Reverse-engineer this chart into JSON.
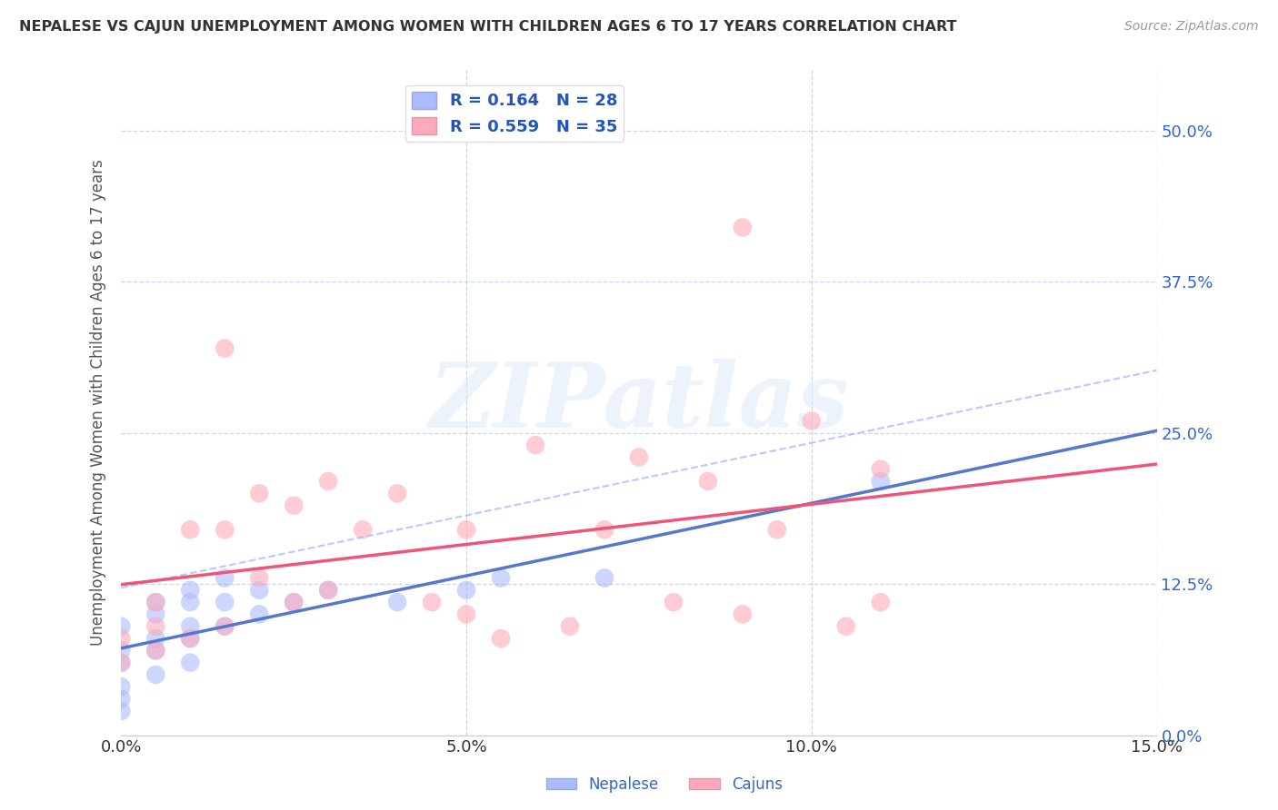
{
  "title": "NEPALESE VS CAJUN UNEMPLOYMENT AMONG WOMEN WITH CHILDREN AGES 6 TO 17 YEARS CORRELATION CHART",
  "source": "Source: ZipAtlas.com",
  "ylabel": "Unemployment Among Women with Children Ages 6 to 17 years",
  "xlim": [
    0.0,
    0.15
  ],
  "ylim": [
    0.0,
    0.55
  ],
  "x_ticks": [
    0.0,
    0.05,
    0.1,
    0.15
  ],
  "x_tick_labels": [
    "0.0%",
    "5.0%",
    "10.0%",
    "15.0%"
  ],
  "y_ticks": [
    0.0,
    0.125,
    0.25,
    0.375,
    0.5
  ],
  "y_tick_labels": [
    "0.0%",
    "12.5%",
    "25.0%",
    "37.5%",
    "50.0%"
  ],
  "nepalese_R": 0.164,
  "nepalese_N": 28,
  "cajun_R": 0.559,
  "cajun_N": 35,
  "nepalese_color": "#aabbff",
  "cajun_color": "#ffaabb",
  "nepalese_line_color": "#5577cc",
  "cajun_line_color": "#ee5577",
  "background_color": "#ffffff",
  "grid_color": "#bbccee",
  "watermark_text": "ZIPatlas",
  "legend_nepalese_label": "Nepalese",
  "legend_cajun_label": "Cajuns",
  "nepalese_x": [
    0.0,
    0.0,
    0.0,
    0.0,
    0.0,
    0.0,
    0.005,
    0.005,
    0.005,
    0.005,
    0.005,
    0.01,
    0.01,
    0.01,
    0.01,
    0.01,
    0.015,
    0.015,
    0.015,
    0.02,
    0.02,
    0.025,
    0.03,
    0.04,
    0.05,
    0.055,
    0.07,
    0.11
  ],
  "nepalese_y": [
    0.02,
    0.03,
    0.04,
    0.06,
    0.07,
    0.09,
    0.05,
    0.07,
    0.08,
    0.1,
    0.11,
    0.06,
    0.08,
    0.09,
    0.11,
    0.12,
    0.09,
    0.11,
    0.13,
    0.1,
    0.12,
    0.11,
    0.12,
    0.11,
    0.12,
    0.13,
    0.13,
    0.21
  ],
  "cajun_x": [
    0.0,
    0.0,
    0.005,
    0.005,
    0.005,
    0.01,
    0.01,
    0.015,
    0.015,
    0.015,
    0.02,
    0.02,
    0.025,
    0.025,
    0.03,
    0.03,
    0.035,
    0.04,
    0.045,
    0.05,
    0.05,
    0.055,
    0.06,
    0.065,
    0.07,
    0.075,
    0.08,
    0.085,
    0.09,
    0.09,
    0.095,
    0.1,
    0.105,
    0.11,
    0.11
  ],
  "cajun_y": [
    0.06,
    0.08,
    0.07,
    0.09,
    0.11,
    0.08,
    0.17,
    0.09,
    0.17,
    0.32,
    0.13,
    0.2,
    0.11,
    0.19,
    0.12,
    0.21,
    0.17,
    0.2,
    0.11,
    0.1,
    0.17,
    0.08,
    0.24,
    0.09,
    0.17,
    0.23,
    0.11,
    0.21,
    0.1,
    0.42,
    0.17,
    0.26,
    0.09,
    0.22,
    0.11
  ]
}
